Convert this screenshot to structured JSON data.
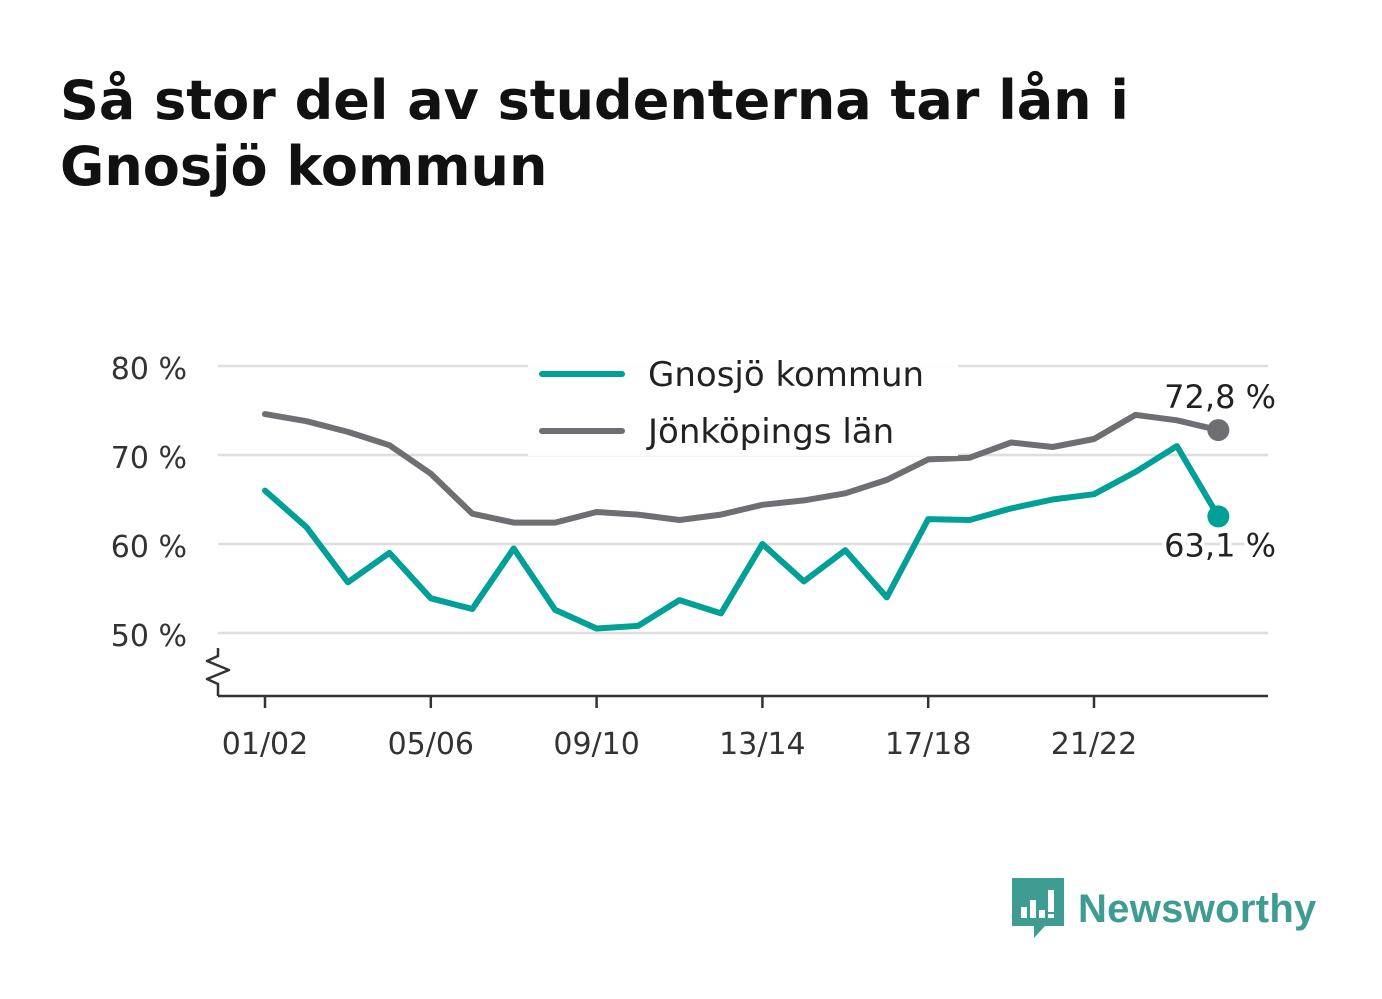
{
  "title": "Så stor del av studenterna tar lån i Gnosjö kommun",
  "brand": {
    "name": "Newsworthy",
    "icon": "newsworthy-logo-icon",
    "color": "#3f9c92"
  },
  "chart_data": {
    "type": "line",
    "title": "Så stor del av studenterna tar lån i Gnosjö kommun",
    "xlabel": "",
    "ylabel": "",
    "x": [
      "01/02",
      "02/03",
      "03/04",
      "04/05",
      "05/06",
      "06/07",
      "07/08",
      "08/09",
      "09/10",
      "10/11",
      "11/12",
      "12/13",
      "13/14",
      "14/15",
      "15/16",
      "16/17",
      "17/18",
      "18/19",
      "19/20",
      "20/21",
      "21/22",
      "22/23",
      "23/24",
      "24/25"
    ],
    "x_tick_labels": [
      "01/02",
      "05/06",
      "09/10",
      "13/14",
      "17/18",
      "21/22"
    ],
    "ylim": [
      43,
      80
    ],
    "y_ticks": [
      50,
      60,
      70,
      80
    ],
    "y_tick_labels": [
      "50 %",
      "60 %",
      "70 %",
      "80 %"
    ],
    "y_axis_break": true,
    "grid": true,
    "legend": "top-center",
    "series": [
      {
        "name": "Gnosjö kommun",
        "color": "#00a096",
        "values": [
          66.0,
          61.9,
          55.7,
          59.0,
          53.9,
          52.7,
          59.5,
          52.6,
          50.5,
          50.8,
          53.7,
          52.2,
          60.0,
          55.8,
          59.3,
          54.0,
          62.8,
          62.7,
          64.0,
          65.0,
          65.6,
          68.1,
          71.0,
          63.1
        ],
        "end_label": "63,1 %"
      },
      {
        "name": "Jönköpings län",
        "color": "#6e6e73",
        "values": [
          74.6,
          73.8,
          72.6,
          71.1,
          67.9,
          63.4,
          62.4,
          62.4,
          63.6,
          63.3,
          62.7,
          63.3,
          64.4,
          64.9,
          65.7,
          67.2,
          69.5,
          69.7,
          71.4,
          70.9,
          71.8,
          74.5,
          73.9,
          72.8
        ],
        "end_label": "72,8 %"
      }
    ]
  }
}
